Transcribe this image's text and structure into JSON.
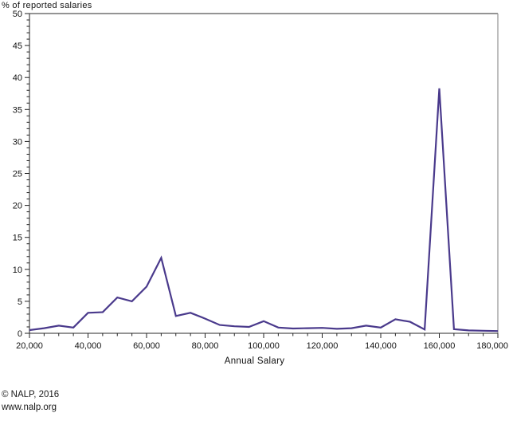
{
  "page": {
    "y_axis_title": "% of reported salaries",
    "x_axis_title": "Annual Salary",
    "footer_line1": "© NALP, 2016",
    "footer_line2": "www.nalp.org"
  },
  "chart_data": {
    "type": "line",
    "title": "",
    "xlabel": "Annual Salary",
    "ylabel": "% of reported salaries",
    "series_name": "Percent of reported salaries",
    "x": [
      20000,
      25000,
      30000,
      35000,
      40000,
      45000,
      50000,
      55000,
      60000,
      65000,
      70000,
      75000,
      80000,
      85000,
      90000,
      95000,
      100000,
      105000,
      110000,
      115000,
      120000,
      125000,
      130000,
      135000,
      140000,
      145000,
      150000,
      155000,
      160000,
      165000,
      170000,
      175000,
      180000
    ],
    "values": [
      0.5,
      0.8,
      1.2,
      0.9,
      3.2,
      3.3,
      5.6,
      5.0,
      7.3,
      11.8,
      2.7,
      3.2,
      2.3,
      1.3,
      1.1,
      1.0,
      1.9,
      0.9,
      0.75,
      0.8,
      0.85,
      0.7,
      0.8,
      1.2,
      0.9,
      2.2,
      1.8,
      0.6,
      38.3,
      0.65,
      0.45,
      0.4,
      0.35
    ],
    "xlim": [
      20000,
      180000
    ],
    "ylim": [
      0,
      50
    ],
    "x_major_ticks": [
      20000,
      40000,
      60000,
      80000,
      100000,
      120000,
      140000,
      160000,
      180000
    ],
    "x_major_tick_labels": [
      "20,000",
      "40,000",
      "60,000",
      "80,000",
      "100,000",
      "120,000",
      "140,000",
      "160,000",
      "180,000"
    ],
    "x_minor_step": 5000,
    "y_major_ticks": [
      0,
      5,
      10,
      15,
      20,
      25,
      30,
      35,
      40,
      45,
      50
    ],
    "y_minor_step": 1,
    "grid": false,
    "legend": "none",
    "line_color": "#4a3a8c",
    "frame_color": "#555555",
    "frame_right_color": "#9a9a9a",
    "tick_color": "#222222"
  }
}
